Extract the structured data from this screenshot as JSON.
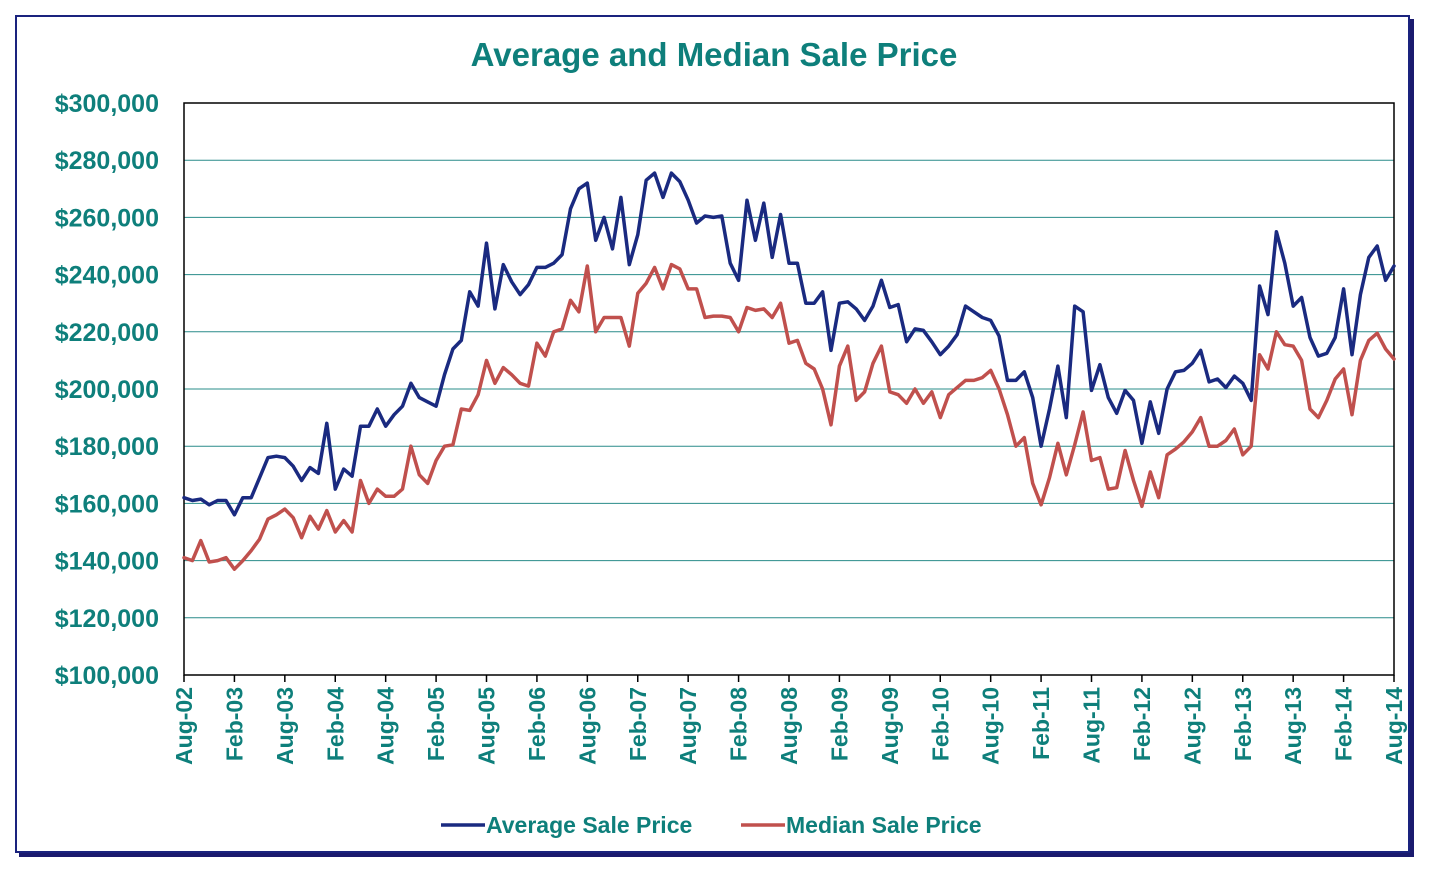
{
  "chart_data": {
    "type": "line",
    "title": "Average and Median Sale Price",
    "xlabel": "",
    "ylabel": "",
    "ylim": [
      100000,
      300000
    ],
    "y_ticks": [
      "$100,000",
      "$120,000",
      "$140,000",
      "$160,000",
      "$180,000",
      "$200,000",
      "$220,000",
      "$240,000",
      "$260,000",
      "$280,000",
      "$300,000"
    ],
    "y_tick_values": [
      100000,
      120000,
      140000,
      160000,
      180000,
      200000,
      220000,
      240000,
      260000,
      280000,
      300000
    ],
    "x_range": [
      "2002-08",
      "2014-08"
    ],
    "x_ticks": [
      "Aug-02",
      "Feb-03",
      "Aug-03",
      "Feb-04",
      "Aug-04",
      "Feb-05",
      "Aug-05",
      "Feb-06",
      "Aug-06",
      "Feb-07",
      "Aug-07",
      "Feb-08",
      "Aug-08",
      "Feb-09",
      "Aug-09",
      "Feb-10",
      "Aug-10",
      "Feb-11",
      "Aug-11",
      "Feb-12",
      "Aug-12",
      "Feb-13",
      "Aug-13",
      "Feb-14",
      "Aug-14"
    ],
    "grid": true,
    "legend_position": "bottom",
    "series": [
      {
        "name": "Average Sale Price",
        "color": "#1a2a80",
        "values": [
          162000,
          161000,
          161500,
          159500,
          161000,
          161000,
          156000,
          162000,
          162000,
          169000,
          176000,
          176500,
          176000,
          173000,
          168000,
          172500,
          170500,
          188000,
          165000,
          172000,
          169500,
          187000,
          187000,
          193000,
          187000,
          191000,
          194000,
          202000,
          197000,
          195500,
          194000,
          205000,
          214000,
          217000,
          234000,
          229000,
          251000,
          228000,
          243500,
          237500,
          233000,
          236500,
          242500,
          242500,
          244000,
          247000,
          263000,
          270000,
          272000,
          252000,
          260000,
          249000,
          267000,
          243500,
          254000,
          273000,
          275500,
          267000,
          275500,
          272500,
          266000,
          258000,
          260500,
          260000,
          260500,
          244000,
          238000,
          266000,
          252000,
          265000,
          246000,
          261000,
          244000,
          244000,
          230000,
          230000,
          234000,
          213500,
          230000,
          230500,
          228000,
          224000,
          229000,
          238000,
          228500,
          229500,
          216500,
          221000,
          220500,
          216500,
          212000,
          215000,
          219000,
          229000,
          227000,
          225000,
          224000,
          218500,
          203000,
          203000,
          206000,
          197000,
          180000,
          193000,
          208000,
          190000,
          229000,
          227000,
          199500,
          208500,
          197000,
          191500,
          199500,
          196000,
          181000,
          195500,
          184500,
          200000,
          206000,
          206500,
          209000,
          213500,
          202500,
          203500,
          200500,
          204500,
          202000,
          196000,
          236000,
          226000,
          255000,
          244000,
          229000,
          232000,
          218000,
          211500,
          212500,
          218000,
          235000,
          212000,
          233000,
          246000,
          250000,
          238000,
          243000
        ]
      },
      {
        "name": "Median Sale Price",
        "color": "#c0504d",
        "values": [
          141000,
          140000,
          147000,
          139500,
          140000,
          141000,
          137000,
          140000,
          143500,
          147500,
          154500,
          156000,
          158000,
          155000,
          148000,
          155500,
          151000,
          157500,
          150000,
          154000,
          150000,
          168000,
          160000,
          165000,
          162500,
          162500,
          165000,
          180000,
          170000,
          167000,
          175000,
          180000,
          180500,
          193000,
          192500,
          198000,
          210000,
          202000,
          207500,
          205000,
          202000,
          201000,
          216000,
          211500,
          220000,
          221000,
          231000,
          227000,
          243000,
          220000,
          225000,
          225000,
          225000,
          215000,
          233500,
          237000,
          242500,
          235000,
          243500,
          242000,
          235000,
          235000,
          225000,
          225500,
          225500,
          225000,
          220000,
          228500,
          227500,
          228000,
          225000,
          230000,
          216000,
          217000,
          209000,
          207000,
          200000,
          187500,
          208000,
          215000,
          196000,
          199000,
          209000,
          215000,
          199000,
          198000,
          195000,
          200000,
          195000,
          199000,
          190000,
          198000,
          200500,
          203000,
          203000,
          204000,
          206500,
          200000,
          191000,
          180000,
          183000,
          167000,
          159500,
          169000,
          181000,
          170000,
          180500,
          192000,
          175000,
          176000,
          165000,
          165500,
          178500,
          168000,
          159000,
          171000,
          162000,
          177000,
          179000,
          181500,
          185000,
          190000,
          180000,
          180000,
          182000,
          186000,
          177000,
          180000,
          212000,
          207000,
          220000,
          215500,
          215000,
          210000,
          193000,
          190000,
          196000,
          203500,
          207000,
          191000,
          210000,
          217000,
          219500,
          214000,
          210500
        ]
      }
    ]
  }
}
